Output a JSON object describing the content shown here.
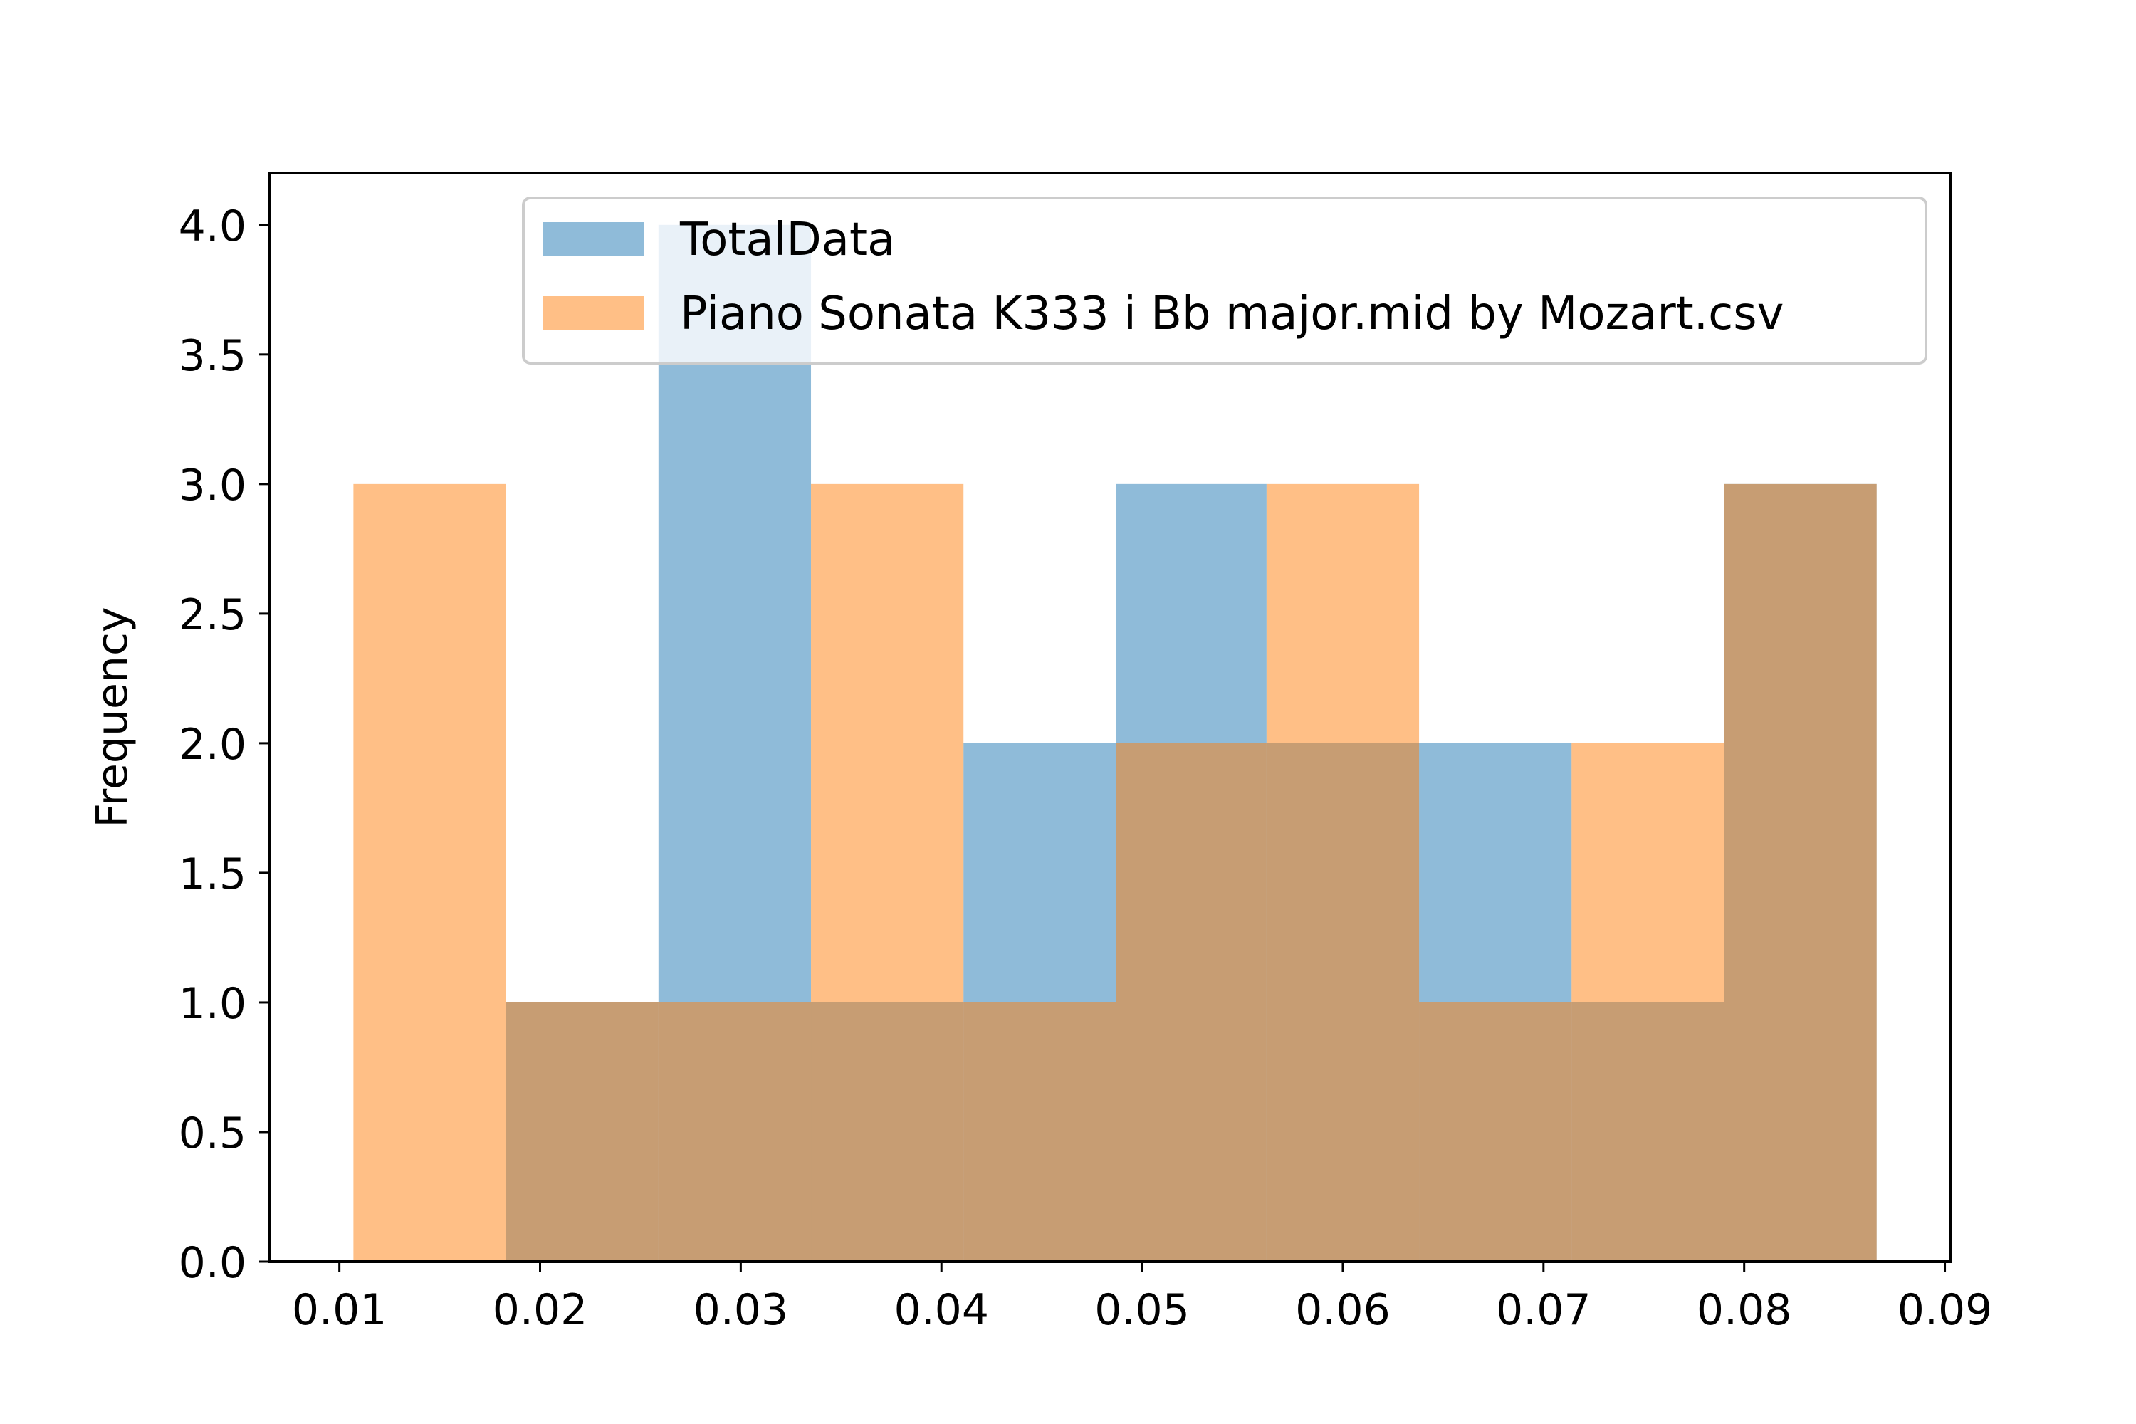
{
  "chart_data": {
    "type": "bar",
    "subtype": "histogram-overlay",
    "title": "",
    "xlabel": "",
    "ylabel": "Frequency",
    "xlim": [
      0.0065,
      0.0903
    ],
    "ylim": [
      0,
      4.2
    ],
    "xticks": [
      "0.01",
      "0.02",
      "0.03",
      "0.04",
      "0.05",
      "0.06",
      "0.07",
      "0.08",
      "0.09"
    ],
    "yticks": [
      "0.0",
      "0.5",
      "1.0",
      "1.5",
      "2.0",
      "2.5",
      "3.0",
      "3.5",
      "4.0"
    ],
    "grid": false,
    "legend_position": "top-right",
    "bin_edges": [
      0.0107,
      0.0183,
      0.0259,
      0.0335,
      0.0411,
      0.0487,
      0.0562,
      0.0638,
      0.0714,
      0.079,
      0.0866
    ],
    "series": [
      {
        "name": "TotalData",
        "color": "#1f77b4",
        "alpha": 0.5,
        "values": [
          0,
          1,
          4,
          1,
          2,
          3,
          2,
          2,
          1,
          3
        ]
      },
      {
        "name": "Piano Sonata K333 i Bb major.mid by Mozart.csv",
        "color": "#ff7f0e",
        "alpha": 0.5,
        "values": [
          3,
          1,
          1,
          3,
          1,
          2,
          3,
          1,
          2,
          3
        ]
      }
    ]
  }
}
